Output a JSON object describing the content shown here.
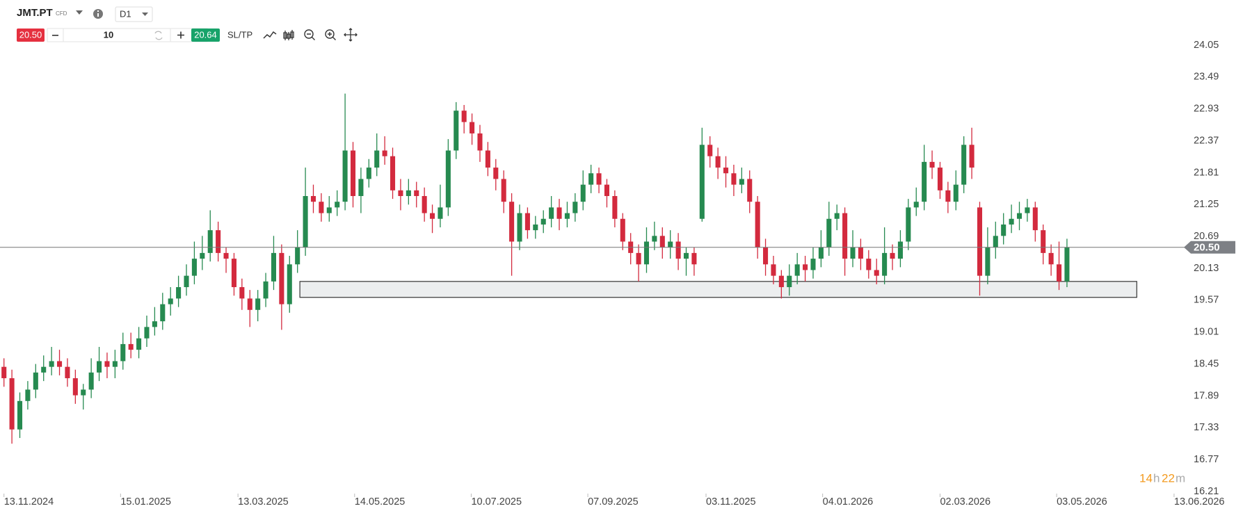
{
  "header": {
    "symbol": "JMT.PT",
    "instrument_type": "CFD",
    "timeframe": "D1",
    "sell_price": "20.50",
    "quantity": "10",
    "buy_price": "20.64",
    "sl_tp": "SL/TP"
  },
  "timer": {
    "hours": "14",
    "h_unit": "h",
    "minutes": "22",
    "m_unit": "m"
  },
  "chart_data": {
    "type": "candlestick",
    "up_color": "#268a50",
    "down_color": "#d32a3e",
    "xlim": [
      -0.5,
      149
    ],
    "ylim": [
      16.21,
      24.05
    ],
    "yticks": [
      24.05,
      23.49,
      22.93,
      22.37,
      21.81,
      21.25,
      20.69,
      20.13,
      19.57,
      19.01,
      18.45,
      17.89,
      17.33,
      16.77,
      16.21
    ],
    "xticks": [
      {
        "value": 0,
        "label": "13.11.2024"
      },
      {
        "value": 14.7,
        "label": "15.01.2025"
      },
      {
        "value": 29.5,
        "label": "13.03.2025"
      },
      {
        "value": 44.2,
        "label": "14.05.2025"
      },
      {
        "value": 58.9,
        "label": "10.07.2025"
      },
      {
        "value": 73.6,
        "label": "07.09.2025"
      },
      {
        "value": 88.5,
        "label": "03.11.2025"
      },
      {
        "value": 103.2,
        "label": "04.01.2026"
      },
      {
        "value": 118,
        "label": "02.03.2026"
      },
      {
        "value": 132.7,
        "label": "03.05.2026"
      },
      {
        "value": 147.5,
        "label": "13.06.2026"
      }
    ],
    "last_price": {
      "value": 20.5,
      "label": "20.50"
    },
    "zone": {
      "x": [
        37.3,
        142.8
      ],
      "y": [
        19.62,
        19.9
      ]
    },
    "candles": [
      [
        18.4,
        18.55,
        18.05,
        18.2
      ],
      [
        18.2,
        18.35,
        17.05,
        17.3
      ],
      [
        17.3,
        17.95,
        17.15,
        17.8
      ],
      [
        17.8,
        18.15,
        17.65,
        18.0
      ],
      [
        18.0,
        18.45,
        17.85,
        18.3
      ],
      [
        18.3,
        18.6,
        18.15,
        18.4
      ],
      [
        18.4,
        18.75,
        18.25,
        18.5
      ],
      [
        18.5,
        18.7,
        18.25,
        18.4
      ],
      [
        18.4,
        18.55,
        18.05,
        18.2
      ],
      [
        18.2,
        18.35,
        17.75,
        17.9
      ],
      [
        17.9,
        18.1,
        17.65,
        18.0
      ],
      [
        18.0,
        18.55,
        17.85,
        18.3
      ],
      [
        18.3,
        18.75,
        18.15,
        18.5
      ],
      [
        18.5,
        18.65,
        18.2,
        18.4
      ],
      [
        18.4,
        18.7,
        18.2,
        18.5
      ],
      [
        18.5,
        19.0,
        18.35,
        18.8
      ],
      [
        18.8,
        19.0,
        18.55,
        18.7
      ],
      [
        18.7,
        19.1,
        18.55,
        18.9
      ],
      [
        18.9,
        19.3,
        18.75,
        19.1
      ],
      [
        19.1,
        19.45,
        18.95,
        19.2
      ],
      [
        19.2,
        19.7,
        19.05,
        19.5
      ],
      [
        19.5,
        19.8,
        19.3,
        19.6
      ],
      [
        19.6,
        20.0,
        19.45,
        19.8
      ],
      [
        19.8,
        20.2,
        19.65,
        20.0
      ],
      [
        20.0,
        20.6,
        19.85,
        20.3
      ],
      [
        20.3,
        20.7,
        20.1,
        20.4
      ],
      [
        20.4,
        21.15,
        20.25,
        20.8
      ],
      [
        20.8,
        20.95,
        20.25,
        20.4
      ],
      [
        20.4,
        20.5,
        20.05,
        20.3
      ],
      [
        20.3,
        20.4,
        19.65,
        19.8
      ],
      [
        19.8,
        19.95,
        19.4,
        19.6
      ],
      [
        19.6,
        19.75,
        19.1,
        19.4
      ],
      [
        19.4,
        19.75,
        19.2,
        19.6
      ],
      [
        19.6,
        20.05,
        19.45,
        19.9
      ],
      [
        19.9,
        20.7,
        19.75,
        20.4
      ],
      [
        20.4,
        20.55,
        19.05,
        19.5
      ],
      [
        19.5,
        20.35,
        19.35,
        20.2
      ],
      [
        20.2,
        20.8,
        20.05,
        20.5
      ],
      [
        20.5,
        21.9,
        20.35,
        21.4
      ],
      [
        21.4,
        21.6,
        21.1,
        21.3
      ],
      [
        21.3,
        21.45,
        20.95,
        21.1
      ],
      [
        21.1,
        21.4,
        20.95,
        21.2
      ],
      [
        21.2,
        21.5,
        21.05,
        21.3
      ],
      [
        21.3,
        23.2,
        21.15,
        22.2
      ],
      [
        22.2,
        22.35,
        21.2,
        21.4
      ],
      [
        21.4,
        21.9,
        21.1,
        21.7
      ],
      [
        21.7,
        22.05,
        21.55,
        21.9
      ],
      [
        21.9,
        22.5,
        21.75,
        22.2
      ],
      [
        22.2,
        22.45,
        21.95,
        22.1
      ],
      [
        22.1,
        22.25,
        21.35,
        21.5
      ],
      [
        21.5,
        21.7,
        21.15,
        21.4
      ],
      [
        21.4,
        21.7,
        21.25,
        21.5
      ],
      [
        21.5,
        21.65,
        21.2,
        21.4
      ],
      [
        21.4,
        21.55,
        20.95,
        21.1
      ],
      [
        21.1,
        21.25,
        20.75,
        21.0
      ],
      [
        21.0,
        21.6,
        20.85,
        21.2
      ],
      [
        21.2,
        22.4,
        21.05,
        22.2
      ],
      [
        22.2,
        23.05,
        22.05,
        22.9
      ],
      [
        22.9,
        23.0,
        22.5,
        22.7
      ],
      [
        22.7,
        22.85,
        22.3,
        22.5
      ],
      [
        22.5,
        22.65,
        22.0,
        22.2
      ],
      [
        22.2,
        22.35,
        21.75,
        21.9
      ],
      [
        21.9,
        22.05,
        21.5,
        21.7
      ],
      [
        21.7,
        21.85,
        21.1,
        21.3
      ],
      [
        21.3,
        21.45,
        20.0,
        20.6
      ],
      [
        20.6,
        21.25,
        20.45,
        21.1
      ],
      [
        21.1,
        21.2,
        20.65,
        20.8
      ],
      [
        20.8,
        21.05,
        20.65,
        20.9
      ],
      [
        20.9,
        21.15,
        20.75,
        21.0
      ],
      [
        21.0,
        21.4,
        20.85,
        21.2
      ],
      [
        21.2,
        21.35,
        20.8,
        21.0
      ],
      [
        21.0,
        21.3,
        20.85,
        21.1
      ],
      [
        21.1,
        21.45,
        20.95,
        21.3
      ],
      [
        21.3,
        21.85,
        21.15,
        21.6
      ],
      [
        21.6,
        21.95,
        21.45,
        21.8
      ],
      [
        21.8,
        21.9,
        21.45,
        21.6
      ],
      [
        21.6,
        21.7,
        21.2,
        21.4
      ],
      [
        21.4,
        21.5,
        20.85,
        21.0
      ],
      [
        21.0,
        21.1,
        20.45,
        20.6
      ],
      [
        20.6,
        20.75,
        20.2,
        20.4
      ],
      [
        20.4,
        20.55,
        19.9,
        20.2
      ],
      [
        20.2,
        20.85,
        20.05,
        20.6
      ],
      [
        20.6,
        20.95,
        20.45,
        20.7
      ],
      [
        20.7,
        20.85,
        20.3,
        20.5
      ],
      [
        20.5,
        20.8,
        20.3,
        20.6
      ],
      [
        20.6,
        20.75,
        20.1,
        20.3
      ],
      [
        20.3,
        20.5,
        20.0,
        20.4
      ],
      [
        20.4,
        20.5,
        20.0,
        20.2
      ],
      [
        21.0,
        22.6,
        20.95,
        22.3
      ],
      [
        22.3,
        22.45,
        21.9,
        22.1
      ],
      [
        22.1,
        22.25,
        21.7,
        21.9
      ],
      [
        21.9,
        22.1,
        21.55,
        21.8
      ],
      [
        21.8,
        21.95,
        21.4,
        21.6
      ],
      [
        21.6,
        21.9,
        21.45,
        21.7
      ],
      [
        21.7,
        21.85,
        21.1,
        21.3
      ],
      [
        21.3,
        21.4,
        20.3,
        20.5
      ],
      [
        20.5,
        20.65,
        20.0,
        20.2
      ],
      [
        20.2,
        20.35,
        19.85,
        20.0
      ],
      [
        20.0,
        20.1,
        19.6,
        19.8
      ],
      [
        19.8,
        20.2,
        19.65,
        20.0
      ],
      [
        20.0,
        20.4,
        19.85,
        20.2
      ],
      [
        20.2,
        20.35,
        19.9,
        20.1
      ],
      [
        20.1,
        20.5,
        19.95,
        20.3
      ],
      [
        20.3,
        20.8,
        20.15,
        20.5
      ],
      [
        20.5,
        21.3,
        20.35,
        21.0
      ],
      [
        21.0,
        21.25,
        20.8,
        21.1
      ],
      [
        21.1,
        21.2,
        20.0,
        20.3
      ],
      [
        20.3,
        20.8,
        20.15,
        20.5
      ],
      [
        20.5,
        20.65,
        20.1,
        20.3
      ],
      [
        20.3,
        20.45,
        19.95,
        20.1
      ],
      [
        20.1,
        20.3,
        19.85,
        20.0
      ],
      [
        20.0,
        20.85,
        19.85,
        20.4
      ],
      [
        20.4,
        20.55,
        20.1,
        20.3
      ],
      [
        20.3,
        20.8,
        20.15,
        20.6
      ],
      [
        20.6,
        21.35,
        20.45,
        21.2
      ],
      [
        21.2,
        21.55,
        21.05,
        21.3
      ],
      [
        21.3,
        22.3,
        21.15,
        22.0
      ],
      [
        22.0,
        22.2,
        21.7,
        21.9
      ],
      [
        21.9,
        22.0,
        21.35,
        21.5
      ],
      [
        21.5,
        21.65,
        21.1,
        21.3
      ],
      [
        21.3,
        21.85,
        21.15,
        21.6
      ],
      [
        21.6,
        22.45,
        21.45,
        22.3
      ],
      [
        22.3,
        22.6,
        21.7,
        21.9
      ],
      [
        21.2,
        21.3,
        19.65,
        20.0
      ],
      [
        20.0,
        20.85,
        19.85,
        20.5
      ],
      [
        20.5,
        20.95,
        20.3,
        20.7
      ],
      [
        20.7,
        21.1,
        20.55,
        20.9
      ],
      [
        20.9,
        21.25,
        20.75,
        21.0
      ],
      [
        21.0,
        21.3,
        20.8,
        21.1
      ],
      [
        21.1,
        21.35,
        20.95,
        21.2
      ],
      [
        21.2,
        21.3,
        20.6,
        20.8
      ],
      [
        20.8,
        20.9,
        20.2,
        20.4
      ],
      [
        20.4,
        20.55,
        20.0,
        20.2
      ],
      [
        20.2,
        20.6,
        19.75,
        19.9
      ],
      [
        19.9,
        20.65,
        19.8,
        20.5
      ]
    ]
  }
}
